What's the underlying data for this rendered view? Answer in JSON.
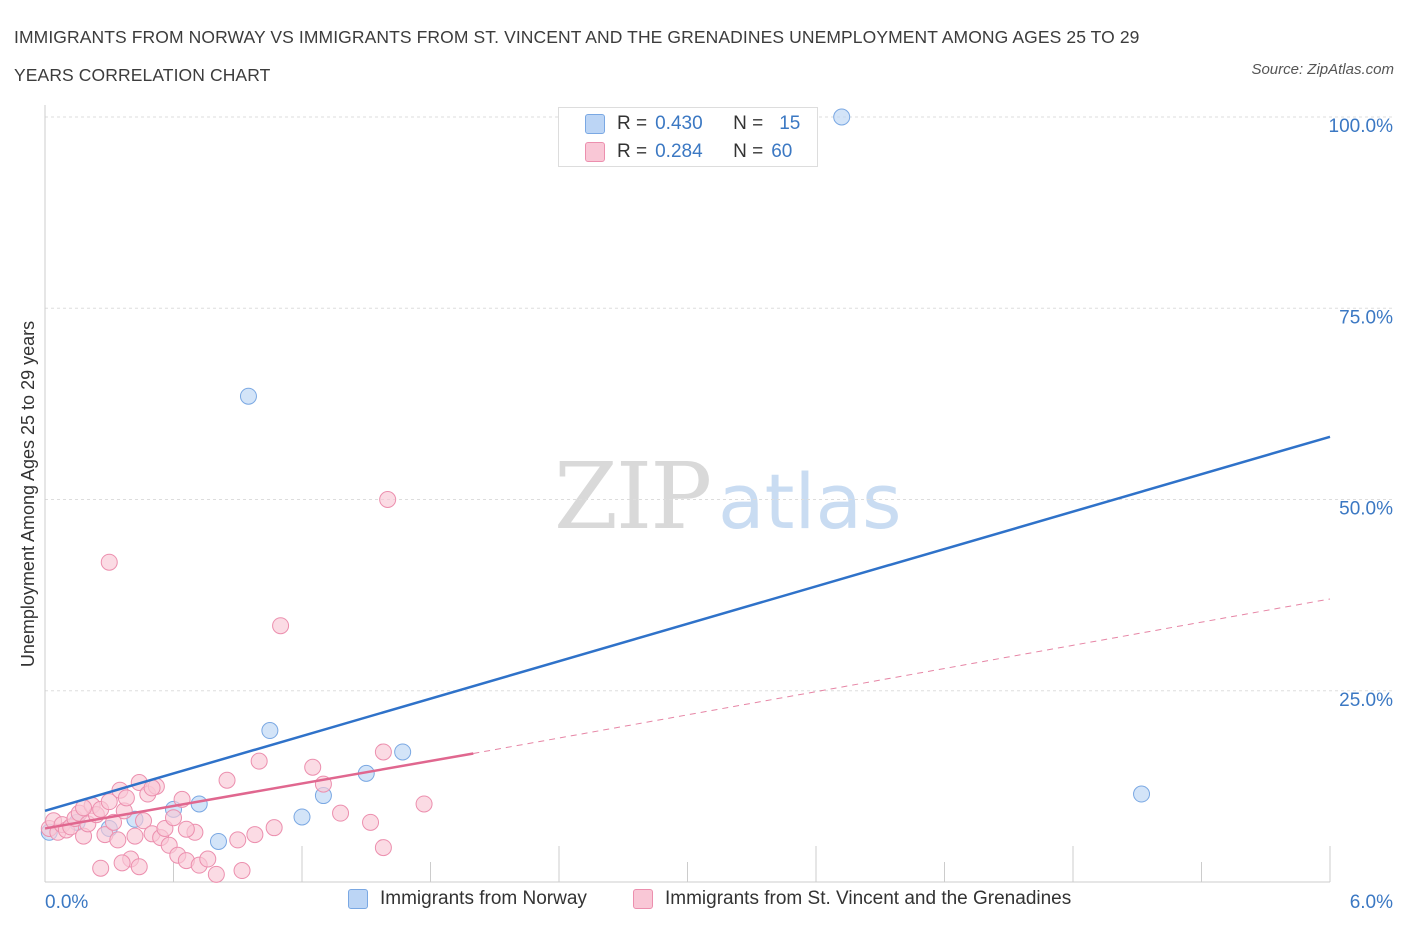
{
  "title": "IMMIGRANTS FROM NORWAY VS IMMIGRANTS FROM ST. VINCENT AND THE GRENADINES UNEMPLOYMENT AMONG AGES 25 TO 29 YEARS CORRELATION CHART",
  "source": "Source: ZipAtlas.com",
  "watermark": {
    "zip": "ZIP",
    "atlas": "atlas"
  },
  "colors": {
    "norway_fill": "#bcd5f5",
    "norway_stroke": "#7aa8e3",
    "norway_line": "#2f72c9",
    "svg_fill": "#f9c7d6",
    "svg_stroke": "#ec8fae",
    "svg_line": "#e0678f",
    "axis_label": "#3b78c3",
    "grid": "#dddddd"
  },
  "stats": [
    {
      "r_label": "R =",
      "r": "0.430",
      "n_label": "N =",
      "n": "15",
      "series": "norway"
    },
    {
      "r_label": "R =",
      "r": "0.284",
      "n_label": "N =",
      "n": "60",
      "series": "svg"
    }
  ],
  "legend": [
    {
      "label": "Immigrants from Norway",
      "series": "norway"
    },
    {
      "label": "Immigrants from St. Vincent and the Grenadines",
      "series": "svg"
    }
  ],
  "chart_data": {
    "type": "scatter",
    "title": "IMMIGRANTS FROM NORWAY VS IMMIGRANTS FROM ST. VINCENT AND THE GRENADINES UNEMPLOYMENT AMONG AGES 25 TO 29 YEARS CORRELATION CHART",
    "xlabel": "",
    "ylabel": "Unemployment Among Ages 25 to 29 years",
    "xlim": [
      0,
      6
    ],
    "ylim": [
      0,
      100
    ],
    "x_tick_labels": [
      {
        "value": 0,
        "label": "0.0%"
      },
      {
        "value": 6,
        "label": "6.0%"
      }
    ],
    "y_tick_labels": [
      {
        "value": 25,
        "label": "25.0%"
      },
      {
        "value": 50,
        "label": "50.0%"
      },
      {
        "value": 75,
        "label": "75.0%"
      },
      {
        "value": 100,
        "label": "100.0%"
      }
    ],
    "series": [
      {
        "name": "Immigrants from Norway",
        "key": "norway",
        "points": [
          [
            0.02,
            6.5
          ],
          [
            0.3,
            7.0
          ],
          [
            0.42,
            8.2
          ],
          [
            0.6,
            9.5
          ],
          [
            0.72,
            10.2
          ],
          [
            0.81,
            5.3
          ],
          [
            0.95,
            63.5
          ],
          [
            1.05,
            19.8
          ],
          [
            1.2,
            8.5
          ],
          [
            1.3,
            11.3
          ],
          [
            1.5,
            14.2
          ],
          [
            1.67,
            17.0
          ],
          [
            3.72,
            100.0
          ],
          [
            5.12,
            11.5
          ],
          [
            0.15,
            7.8
          ]
        ],
        "trend": {
          "x": [
            0,
            6
          ],
          "y": [
            9.3,
            58.2
          ],
          "style": "solid"
        }
      },
      {
        "name": "Immigrants from St. Vincent and the Grenadines",
        "key": "svg",
        "points": [
          [
            0.02,
            7.0
          ],
          [
            0.04,
            8.0
          ],
          [
            0.06,
            6.5
          ],
          [
            0.08,
            7.5
          ],
          [
            0.1,
            6.8
          ],
          [
            0.12,
            7.2
          ],
          [
            0.14,
            8.3
          ],
          [
            0.16,
            9.0
          ],
          [
            0.18,
            6.0
          ],
          [
            0.2,
            7.6
          ],
          [
            0.22,
            10.0
          ],
          [
            0.24,
            8.8
          ],
          [
            0.26,
            9.5
          ],
          [
            0.28,
            6.2
          ],
          [
            0.3,
            10.5
          ],
          [
            0.32,
            7.8
          ],
          [
            0.34,
            5.5
          ],
          [
            0.35,
            12.0
          ],
          [
            0.37,
            9.3
          ],
          [
            0.38,
            11.0
          ],
          [
            0.4,
            3.0
          ],
          [
            0.42,
            6.0
          ],
          [
            0.44,
            13.0
          ],
          [
            0.46,
            8.0
          ],
          [
            0.48,
            11.5
          ],
          [
            0.5,
            6.3
          ],
          [
            0.52,
            12.5
          ],
          [
            0.54,
            5.8
          ],
          [
            0.56,
            7.0
          ],
          [
            0.58,
            4.8
          ],
          [
            0.6,
            8.4
          ],
          [
            0.62,
            3.5
          ],
          [
            0.64,
            10.8
          ],
          [
            0.66,
            2.8
          ],
          [
            0.7,
            6.5
          ],
          [
            0.72,
            2.2
          ],
          [
            0.76,
            3.0
          ],
          [
            0.8,
            1.0
          ],
          [
            0.85,
            13.3
          ],
          [
            0.9,
            5.5
          ],
          [
            0.92,
            1.5
          ],
          [
            0.98,
            6.2
          ],
          [
            1.0,
            15.8
          ],
          [
            1.07,
            7.1
          ],
          [
            1.1,
            33.5
          ],
          [
            1.25,
            15.0
          ],
          [
            1.3,
            12.8
          ],
          [
            1.38,
            9.0
          ],
          [
            1.52,
            7.8
          ],
          [
            1.58,
            17.0
          ],
          [
            1.6,
            50.0
          ],
          [
            1.58,
            4.5
          ],
          [
            1.77,
            10.2
          ],
          [
            0.3,
            41.8
          ],
          [
            0.36,
            2.5
          ],
          [
            0.5,
            12.3
          ],
          [
            0.66,
            6.9
          ],
          [
            0.44,
            2.0
          ],
          [
            0.26,
            1.8
          ],
          [
            0.18,
            9.7
          ]
        ],
        "trend": {
          "x": [
            0,
            2.0
          ],
          "y": [
            7.0,
            16.8
          ],
          "style": "solid"
        },
        "trend_extension": {
          "x": [
            2.0,
            6
          ],
          "y": [
            16.8,
            37.0
          ],
          "style": "dashed"
        }
      }
    ]
  }
}
